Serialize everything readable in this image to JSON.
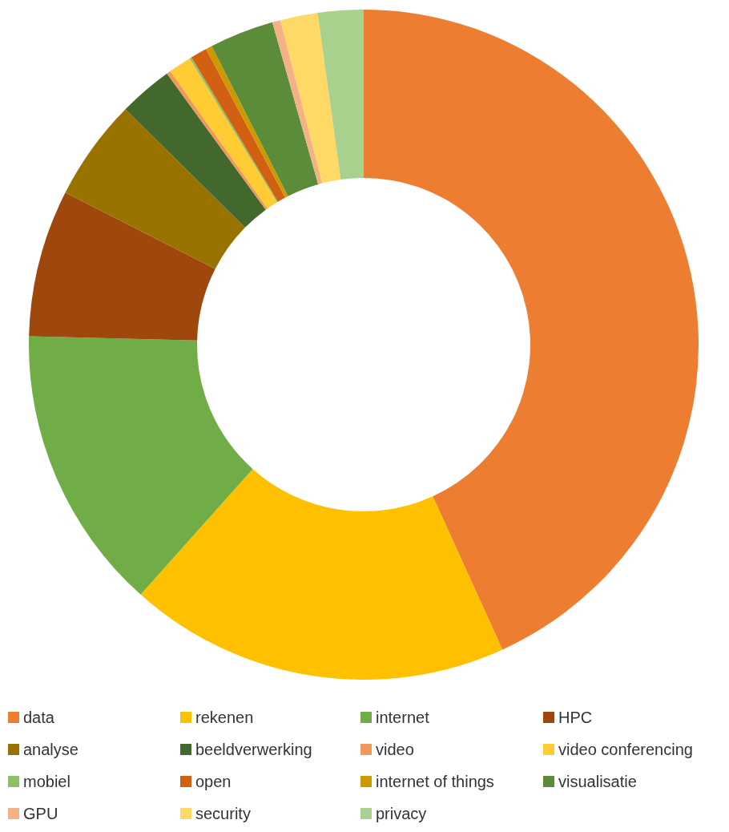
{
  "chart_data": {
    "type": "donut",
    "categories": [
      "data",
      "rekenen",
      "internet",
      "HPC",
      "analyse",
      "beeldverwerking",
      "video",
      "video conferencing",
      "mobiel",
      "open",
      "internet of things",
      "visualisatie",
      "GPU",
      "security",
      "privacy"
    ],
    "values": [
      43.2,
      18.4,
      13.8,
      7.1,
      4.9,
      2.6,
      0.2,
      1.1,
      0.1,
      0.8,
      0.3,
      3.1,
      0.4,
      1.8,
      2.2
    ],
    "colors": [
      "#ed7d31",
      "#ffc000",
      "#70ad47",
      "#9e480e",
      "#997300",
      "#43682b",
      "#f1975a",
      "#ffcd33",
      "#8cc168",
      "#d26012",
      "#cc9a00",
      "#5b8c3a",
      "#f4b183",
      "#ffd966",
      "#a9d18e"
    ],
    "legend": "bottom"
  }
}
